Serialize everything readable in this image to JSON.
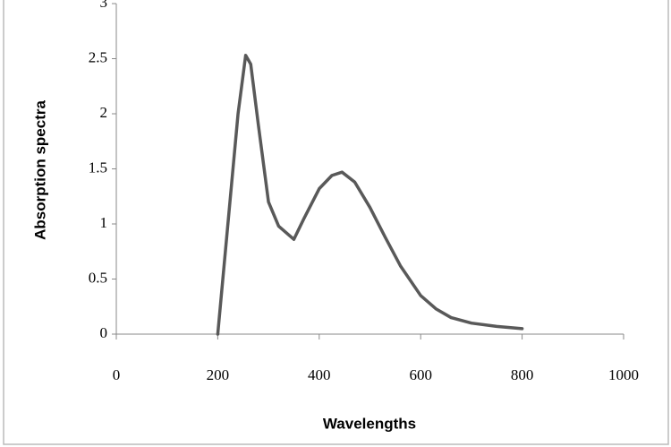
{
  "chart_data": {
    "type": "line",
    "x_label": "Wavelengths",
    "y_label": "Absorption spectra",
    "x": [
      200,
      220,
      240,
      255,
      265,
      280,
      300,
      320,
      350,
      370,
      400,
      425,
      445,
      470,
      500,
      530,
      560,
      600,
      630,
      660,
      700,
      750,
      800
    ],
    "series": [
      {
        "color": "#595959",
        "values": [
          0,
          1.0,
          2.0,
          2.53,
          2.45,
          1.9,
          1.2,
          0.98,
          0.86,
          1.05,
          1.32,
          1.44,
          1.47,
          1.38,
          1.15,
          0.88,
          0.62,
          0.35,
          0.23,
          0.15,
          0.1,
          0.07,
          0.05
        ]
      }
    ],
    "xlim": [
      0,
      1000
    ],
    "xticks": [
      0,
      200,
      400,
      600,
      800,
      1000
    ],
    "ylim": [
      0,
      3
    ],
    "yticks": [
      0,
      0.5,
      1,
      1.5,
      2,
      2.5,
      3
    ],
    "grid": false
  }
}
